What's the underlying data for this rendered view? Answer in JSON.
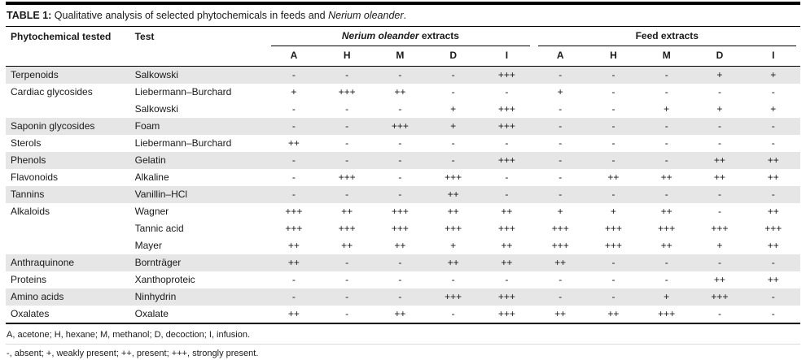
{
  "title": {
    "label": "TABLE 1:",
    "text": " Qualitative analysis of selected phytochemicals in feeds and ",
    "italic": "Nerium oleander",
    "suffix": "."
  },
  "table": {
    "col1_header": "Phytochemical tested",
    "col2_header": "Test",
    "group1_italic": "Nerium oleander",
    "group1_rest": " extracts",
    "group2_header": "Feed extracts",
    "subheaders": [
      "A",
      "H",
      "M",
      "D",
      "I"
    ],
    "rows": [
      {
        "phytochemical": "Terpenoids",
        "test": "Salkowski",
        "nerium": [
          "-",
          "-",
          "-",
          "-",
          "+++"
        ],
        "feed": [
          "-",
          "-",
          "-",
          "+",
          "+"
        ],
        "shaded": true
      },
      {
        "phytochemical": "Cardiac glycosides",
        "test": "Liebermann–Burchard",
        "nerium": [
          "+",
          "+++",
          "++",
          "-",
          "-"
        ],
        "feed": [
          "+",
          "-",
          "-",
          "-",
          "-"
        ],
        "shaded": false
      },
      {
        "phytochemical": "",
        "test": "Salkowski",
        "nerium": [
          "-",
          "-",
          "-",
          "+",
          "+++"
        ],
        "feed": [
          "-",
          "-",
          "+",
          "+",
          "+"
        ],
        "shaded": false
      },
      {
        "phytochemical": "Saponin glycosides",
        "test": "Foam",
        "nerium": [
          "-",
          "-",
          "+++",
          "+",
          "+++"
        ],
        "feed": [
          "-",
          "-",
          "-",
          "-",
          "-"
        ],
        "shaded": true
      },
      {
        "phytochemical": "Sterols",
        "test": "Liebermann–Burchard",
        "nerium": [
          "++",
          "-",
          "-",
          "-",
          "-"
        ],
        "feed": [
          "-",
          "-",
          "-",
          "-",
          "-"
        ],
        "shaded": false
      },
      {
        "phytochemical": "Phenols",
        "test": "Gelatin",
        "nerium": [
          "-",
          "-",
          "-",
          "-",
          "+++"
        ],
        "feed": [
          "-",
          "-",
          "-",
          "++",
          "++"
        ],
        "shaded": true
      },
      {
        "phytochemical": "Flavonoids",
        "test": "Alkaline",
        "nerium": [
          "-",
          "+++",
          "-",
          "+++",
          "-"
        ],
        "feed": [
          "-",
          "++",
          "++",
          "++",
          "++"
        ],
        "shaded": false
      },
      {
        "phytochemical": "Tannins",
        "test": "Vanillin–HCl",
        "nerium": [
          "-",
          "-",
          "-",
          "++",
          "-"
        ],
        "feed": [
          "-",
          "-",
          "-",
          "-",
          "-"
        ],
        "shaded": true
      },
      {
        "phytochemical": "Alkaloids",
        "test": "Wagner",
        "nerium": [
          "+++",
          "++",
          "+++",
          "++",
          "++"
        ],
        "feed": [
          "+",
          "+",
          "++",
          "-",
          "++"
        ],
        "shaded": false
      },
      {
        "phytochemical": "",
        "test": "Tannic acid",
        "nerium": [
          "+++",
          "+++",
          "+++",
          "+++",
          "+++"
        ],
        "feed": [
          "+++",
          "+++",
          "+++",
          "+++",
          "+++"
        ],
        "shaded": false
      },
      {
        "phytochemical": "",
        "test": "Mayer",
        "nerium": [
          "++",
          "++",
          "++",
          "+",
          "++"
        ],
        "feed": [
          "+++",
          "+++",
          "++",
          "+",
          "++"
        ],
        "shaded": false
      },
      {
        "phytochemical": "Anthraquinone",
        "test": "Bornträger",
        "nerium": [
          "++",
          "-",
          "-",
          "++",
          "++"
        ],
        "feed": [
          "++",
          "-",
          "-",
          "-",
          "-"
        ],
        "shaded": true
      },
      {
        "phytochemical": "Proteins",
        "test": "Xanthoproteic",
        "nerium": [
          "-",
          "-",
          "-",
          "-",
          "-"
        ],
        "feed": [
          "-",
          "-",
          "-",
          "++",
          "++"
        ],
        "shaded": false
      },
      {
        "phytochemical": "Amino acids",
        "test": "Ninhydrin",
        "nerium": [
          "-",
          "-",
          "-",
          "+++",
          "+++"
        ],
        "feed": [
          "-",
          "-",
          "+",
          "+++",
          "-"
        ],
        "shaded": true
      },
      {
        "phytochemical": "Oxalates",
        "test": "Oxalate",
        "nerium": [
          "++",
          "-",
          "++",
          "-",
          "+++"
        ],
        "feed": [
          "++",
          "++",
          "+++",
          "-",
          "-"
        ],
        "shaded": false
      }
    ]
  },
  "footnotes": [
    "A, acetone; H, hexane; M, methanol; D, decoction; I, infusion.",
    "-, absent; +, weakly present; ++, present; +++, strongly present."
  ],
  "colors": {
    "shaded_row": "#e6e6e6",
    "rule": "#000000"
  }
}
